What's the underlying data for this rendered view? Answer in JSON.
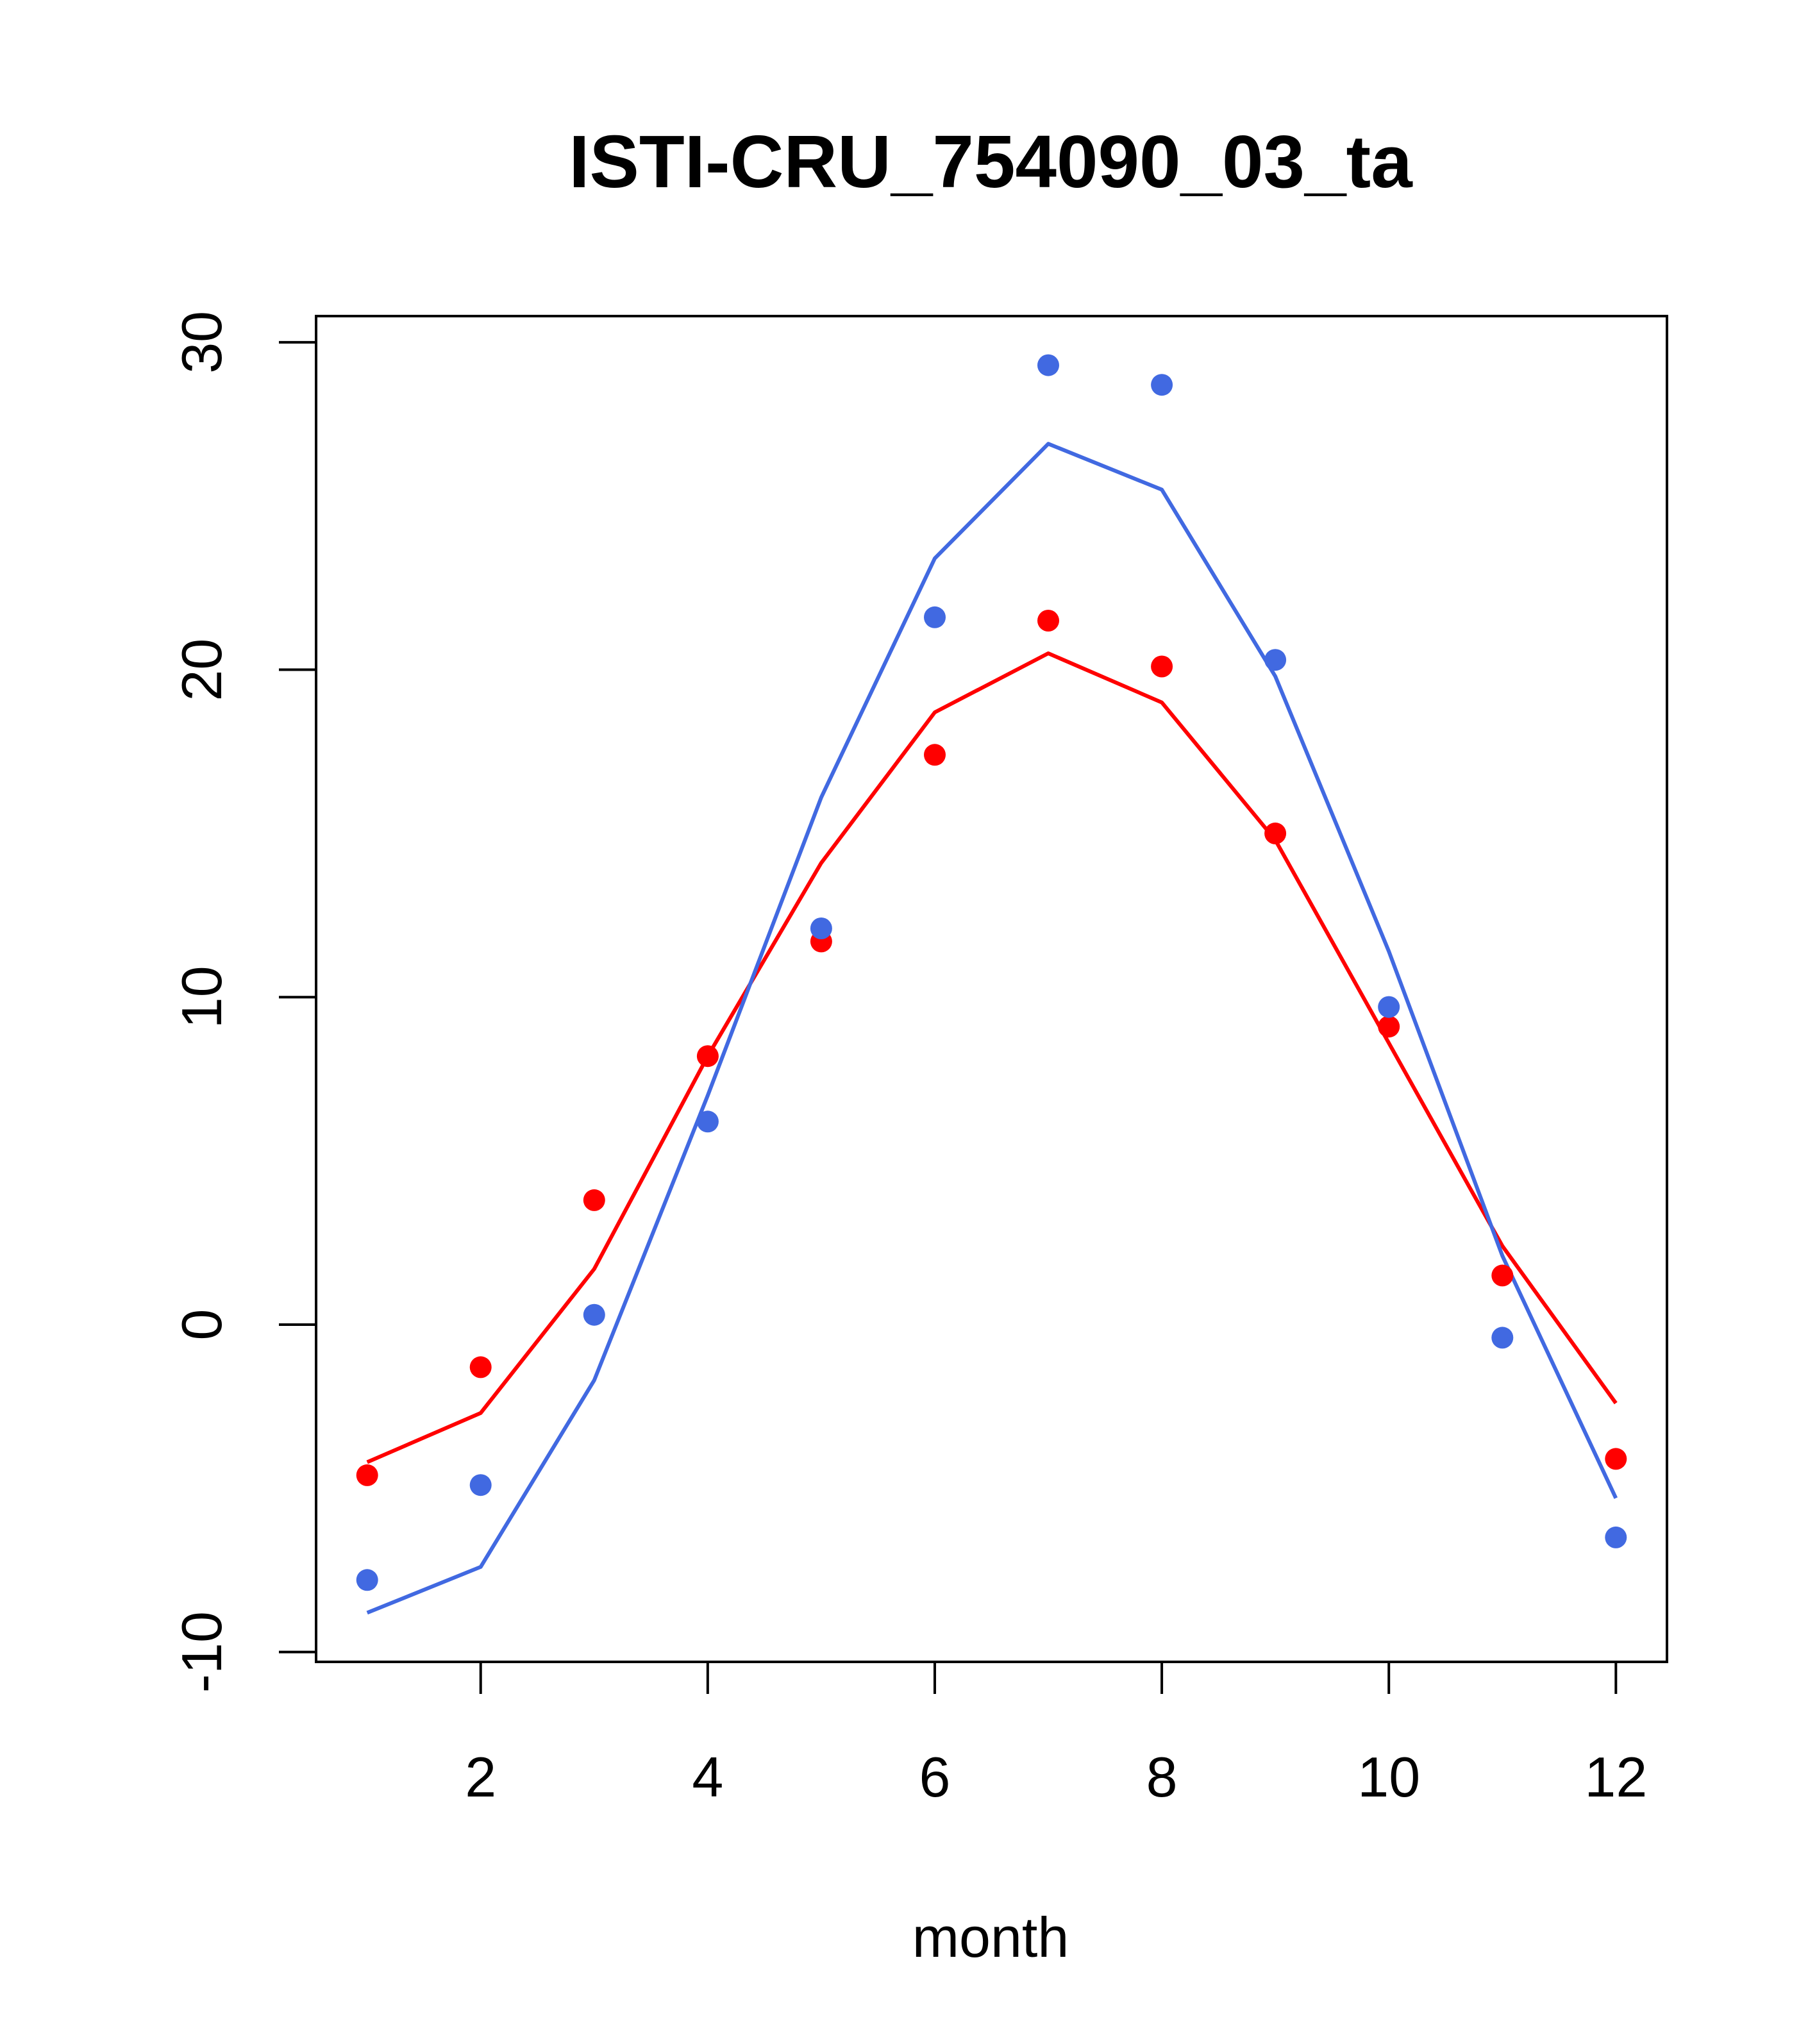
{
  "chart_data": {
    "type": "line",
    "title": "ISTI-CRU_754090_03_ta",
    "xlabel": "month",
    "ylabel": "",
    "xlim": [
      0.55,
      12.45
    ],
    "ylim": [
      -10.3,
      30.8
    ],
    "x_ticks": [
      2,
      4,
      6,
      8,
      10,
      12
    ],
    "y_ticks": [
      -10,
      0,
      10,
      20,
      30
    ],
    "grid": false,
    "x": [
      1,
      2,
      3,
      4,
      5,
      6,
      7,
      8,
      9,
      10,
      11,
      12
    ],
    "series": [
      {
        "color": "#ff0000",
        "line": [
          -4.2,
          -2.7,
          1.7,
          8.2,
          14.1,
          18.7,
          20.5,
          19.0,
          14.8,
          8.6,
          2.4,
          -2.4
        ],
        "points": [
          -4.6,
          -1.3,
          3.8,
          8.2,
          11.7,
          17.4,
          21.5,
          20.1,
          15.0,
          9.1,
          1.5,
          -4.1
        ]
      },
      {
        "color": "#4169e1",
        "line": [
          -8.8,
          -7.4,
          -1.7,
          7.0,
          16.1,
          23.4,
          26.9,
          25.5,
          19.8,
          11.4,
          2.1,
          -5.3
        ],
        "points": [
          -7.8,
          -4.9,
          0.3,
          6.2,
          12.1,
          21.6,
          29.3,
          28.7,
          20.3,
          9.7,
          -0.4,
          -6.5
        ]
      }
    ]
  }
}
